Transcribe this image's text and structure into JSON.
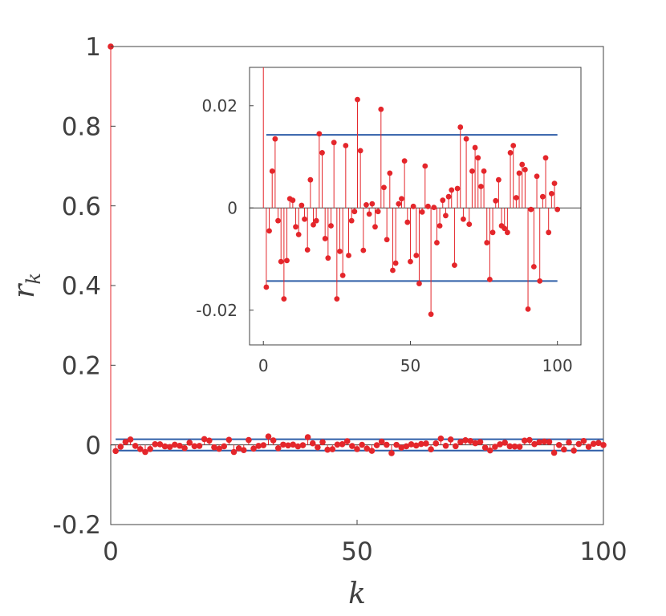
{
  "chart_data": [
    {
      "type": "stem",
      "xlabel": "k",
      "ylabel": "r",
      "ylabel_sub": "k",
      "xlim": [
        0,
        100
      ],
      "ylim": [
        -0.2,
        1
      ],
      "x_ticks": [
        "0",
        "50",
        "100"
      ],
      "y_ticks": [
        "-0.2",
        "0",
        "0.2",
        "0.4",
        "0.6",
        "0.8",
        "1"
      ],
      "x_tick_values": [
        0,
        50,
        100
      ],
      "y_tick_values": [
        -0.2,
        0,
        0.2,
        0.4,
        0.6,
        0.8,
        1
      ],
      "confidence_band": [
        -0.0143,
        0.0143
      ],
      "colors": {
        "stem": "#e4262b",
        "band": "#2f5ea8",
        "zero_line": "#404040",
        "axis": "#404040"
      },
      "x": [
        0,
        1,
        2,
        3,
        4,
        5,
        6,
        7,
        8,
        9,
        10,
        11,
        12,
        13,
        14,
        15,
        16,
        17,
        18,
        19,
        20,
        21,
        22,
        23,
        24,
        25,
        26,
        27,
        28,
        29,
        30,
        31,
        32,
        33,
        34,
        35,
        36,
        37,
        38,
        39,
        40,
        41,
        42,
        43,
        44,
        45,
        46,
        47,
        48,
        49,
        50,
        51,
        52,
        53,
        54,
        55,
        56,
        57,
        58,
        59,
        60,
        61,
        62,
        63,
        64,
        65,
        66,
        67,
        68,
        69,
        70,
        71,
        72,
        73,
        74,
        75,
        76,
        77,
        78,
        79,
        80,
        81,
        82,
        83,
        84,
        85,
        86,
        87,
        88,
        89,
        90,
        91,
        92,
        93,
        94,
        95,
        96,
        97,
        98,
        99,
        100
      ],
      "values": [
        1,
        -0.0155,
        -0.0045,
        0.0072,
        0.0135,
        -0.0025,
        -0.0105,
        -0.0178,
        -0.0103,
        0.0018,
        0.0015,
        -0.0037,
        -0.0052,
        0.0005,
        -0.0022,
        -0.0082,
        0.0055,
        -0.0033,
        -0.0025,
        0.0145,
        0.0108,
        -0.006,
        -0.0098,
        -0.0035,
        0.0128,
        -0.0178,
        -0.0085,
        -0.0132,
        0.0122,
        -0.0093,
        -0.0025,
        -0.0007,
        0.0212,
        0.0112,
        -0.0083,
        0.0006,
        -0.0012,
        0.0008,
        -0.0037,
        -0.0007,
        0.0193,
        0.004,
        -0.0062,
        0.0068,
        -0.0122,
        -0.0108,
        0.0008,
        0.0018,
        0.0092,
        -0.0028,
        -0.0105,
        0.0003,
        -0.0093,
        -0.0148,
        -0.0008,
        0.0082,
        0.0003,
        -0.0208,
        0.0001,
        -0.0068,
        -0.0035,
        0.0015,
        -0.0015,
        0.0022,
        0.0035,
        -0.0112,
        0.0038,
        0.0158,
        -0.0022,
        0.0135,
        -0.0032,
        0.0072,
        0.0118,
        0.0098,
        0.0042,
        0.0072,
        -0.0068,
        -0.014,
        -0.0048,
        0.0014,
        0.0055,
        -0.0035,
        -0.004,
        -0.0048,
        0.0108,
        0.0122,
        0.002,
        0.0068,
        0.0085,
        0.0075,
        -0.0198,
        -0.0003,
        -0.0115,
        0.0062,
        -0.0143,
        0.0022,
        0.0098,
        -0.0048,
        0.0028,
        0.0048,
        -0.0003
      ]
    },
    {
      "type": "stem",
      "inset": true,
      "xlim": [
        -4.7,
        108
      ],
      "ylim": [
        -0.0268,
        0.0275
      ],
      "x_ticks": [
        "0",
        "50",
        "100"
      ],
      "y_ticks": [
        "-0.02",
        "0",
        "0.02"
      ],
      "x_tick_values": [
        0,
        50,
        100
      ],
      "y_tick_values": [
        -0.02,
        0,
        0.02
      ]
    }
  ]
}
